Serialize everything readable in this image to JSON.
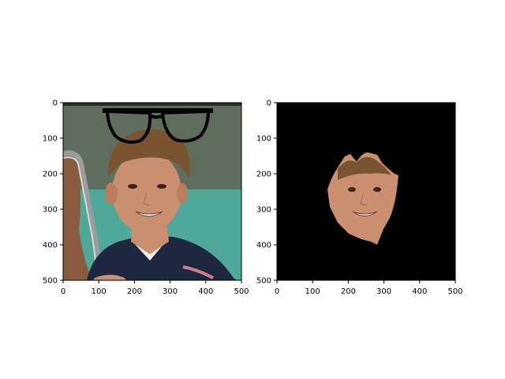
{
  "colors": {
    "axis": "#000000",
    "background": "#ffffff",
    "mask_background": "#000000",
    "wall": "#5f6e5c",
    "court": "#4fa89a",
    "hair": "#7a5430",
    "skin": "#c98f6e",
    "shirt": "#1d2740",
    "stripe": "#c9808a",
    "racket_frame": "#9c9c9c",
    "glasses": "#000000"
  },
  "panels": [
    {
      "id": "original",
      "content": "photo-with-glasses-overlay",
      "xlim": [
        0,
        500
      ],
      "ylim": [
        500,
        0
      ],
      "x_ticks": [
        "0",
        "100",
        "200",
        "300",
        "400",
        "500"
      ],
      "y_ticks": [
        "0",
        "100",
        "200",
        "300",
        "400",
        "500"
      ]
    },
    {
      "id": "face-mask",
      "content": "segmented-face-on-black",
      "xlim": [
        0,
        500
      ],
      "ylim": [
        500,
        0
      ],
      "x_ticks": [
        "0",
        "100",
        "200",
        "300",
        "400",
        "500"
      ],
      "y_ticks": [
        "0",
        "100",
        "200",
        "300",
        "400",
        "500"
      ]
    }
  ]
}
